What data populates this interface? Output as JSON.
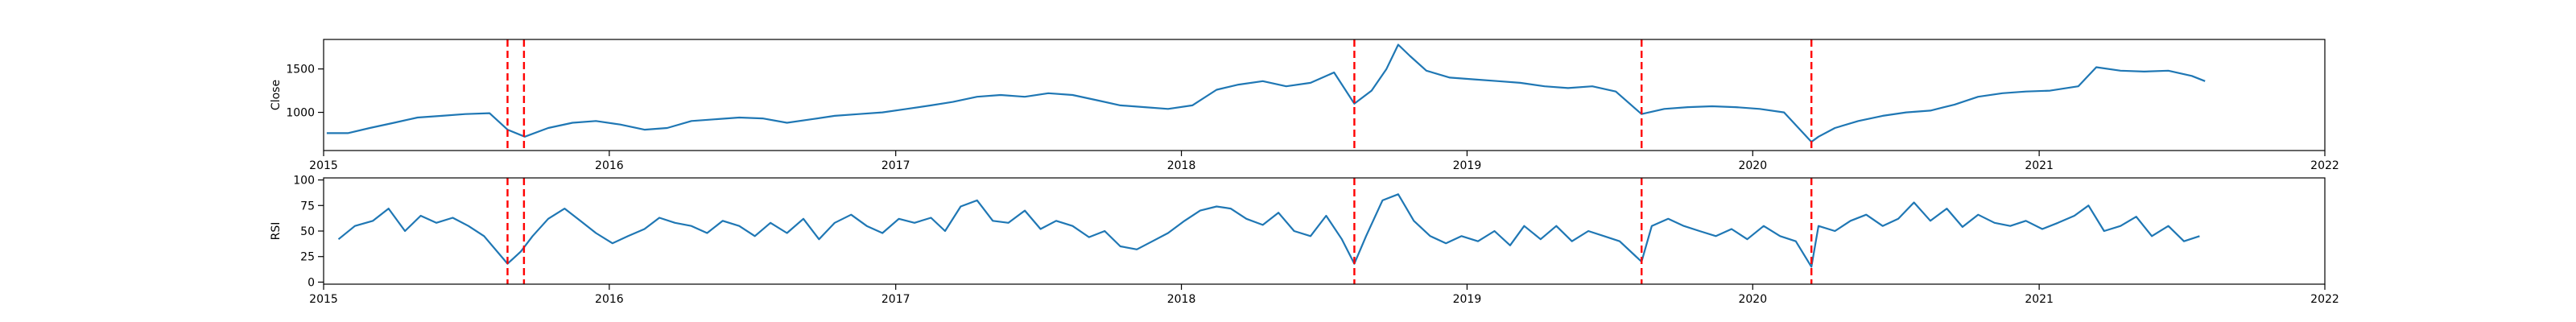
{
  "chart_data": [
    {
      "type": "line",
      "title": "",
      "xlabel": "",
      "ylabel": "Close",
      "xlim": [
        "2015-01-01",
        "2022-01-01"
      ],
      "ylim": [
        560,
        1840
      ],
      "x_ticks": [
        "2015",
        "2016",
        "2017",
        "2018",
        "2019",
        "2020",
        "2021",
        "2022"
      ],
      "y_ticks": [
        1000,
        1500
      ],
      "grid": false,
      "legend": "none",
      "series_color": "#1f77b4",
      "vline_color": "#ff0000",
      "vlines": [
        "2015-08-24",
        "2015-09-14",
        "2018-08-10",
        "2019-08-12",
        "2020-03-16"
      ],
      "series": [
        {
          "x": [
            "2015-01-05",
            "2015-02-01",
            "2015-03-01",
            "2015-04-01",
            "2015-05-01",
            "2015-06-01",
            "2015-07-01",
            "2015-08-01",
            "2015-08-24",
            "2015-09-15",
            "2015-10-15",
            "2015-11-15",
            "2015-12-15",
            "2016-01-15",
            "2016-02-15",
            "2016-03-15",
            "2016-04-15",
            "2016-05-15",
            "2016-06-15",
            "2016-07-15",
            "2016-08-15",
            "2016-09-15",
            "2016-10-15",
            "2016-11-15",
            "2016-12-15",
            "2017-01-15",
            "2017-02-15",
            "2017-03-15",
            "2017-04-15",
            "2017-05-15",
            "2017-06-15",
            "2017-07-15",
            "2017-08-15",
            "2017-09-15",
            "2017-10-15",
            "2017-11-15",
            "2017-12-15",
            "2018-01-15",
            "2018-02-15",
            "2018-03-15",
            "2018-04-15",
            "2018-05-15",
            "2018-06-15",
            "2018-07-15",
            "2018-08-10",
            "2018-09-01",
            "2018-09-20",
            "2018-10-05",
            "2018-10-20",
            "2018-11-10",
            "2018-12-10",
            "2019-01-10",
            "2019-02-10",
            "2019-03-10",
            "2019-04-10",
            "2019-05-10",
            "2019-06-10",
            "2019-07-10",
            "2019-08-12",
            "2019-09-10",
            "2019-10-10",
            "2019-11-10",
            "2019-12-10",
            "2020-01-10",
            "2020-02-10",
            "2020-03-16",
            "2020-03-25",
            "2020-04-15",
            "2020-05-15",
            "2020-06-15",
            "2020-07-15",
            "2020-08-15",
            "2020-09-15",
            "2020-10-15",
            "2020-11-15",
            "2020-12-15",
            "2021-01-15",
            "2021-02-20",
            "2021-03-15",
            "2021-04-15",
            "2021-05-15",
            "2021-06-15",
            "2021-07-15",
            "2021-08-01"
          ],
          "y": [
            760,
            760,
            820,
            880,
            940,
            960,
            980,
            990,
            800,
            720,
            820,
            880,
            900,
            860,
            800,
            820,
            900,
            920,
            940,
            930,
            880,
            920,
            960,
            980,
            1000,
            1040,
            1080,
            1120,
            1180,
            1200,
            1180,
            1220,
            1200,
            1140,
            1080,
            1060,
            1040,
            1080,
            1260,
            1320,
            1360,
            1300,
            1340,
            1460,
            1100,
            1250,
            1500,
            1780,
            1650,
            1480,
            1400,
            1380,
            1360,
            1340,
            1300,
            1280,
            1300,
            1240,
            980,
            1040,
            1060,
            1070,
            1060,
            1040,
            1000,
            660,
            720,
            820,
            900,
            960,
            1000,
            1020,
            1090,
            1180,
            1220,
            1240,
            1250,
            1300,
            1520,
            1480,
            1470,
            1480,
            1420,
            1360
          ]
        }
      ]
    },
    {
      "type": "line",
      "title": "",
      "xlabel": "",
      "ylabel": "RSI",
      "xlim": [
        "2015-01-01",
        "2022-01-01"
      ],
      "ylim": [
        -2,
        102
      ],
      "x_ticks": [
        "2015",
        "2016",
        "2017",
        "2018",
        "2019",
        "2020",
        "2021",
        "2022"
      ],
      "y_ticks": [
        0,
        25,
        50,
        75,
        100
      ],
      "grid": false,
      "legend": "none",
      "series_color": "#1f77b4",
      "vline_color": "#ff0000",
      "vlines": [
        "2015-08-24",
        "2015-09-14",
        "2018-08-10",
        "2019-08-12",
        "2020-03-16"
      ],
      "series": [
        {
          "x": [
            "2015-01-20",
            "2015-02-10",
            "2015-03-05",
            "2015-03-25",
            "2015-04-15",
            "2015-05-05",
            "2015-05-25",
            "2015-06-15",
            "2015-07-05",
            "2015-07-25",
            "2015-08-24",
            "2015-09-10",
            "2015-09-25",
            "2015-10-15",
            "2015-11-05",
            "2015-11-25",
            "2015-12-15",
            "2016-01-05",
            "2016-01-25",
            "2016-02-15",
            "2016-03-05",
            "2016-03-25",
            "2016-04-15",
            "2016-05-05",
            "2016-05-25",
            "2016-06-15",
            "2016-07-05",
            "2016-07-25",
            "2016-08-15",
            "2016-09-05",
            "2016-09-25",
            "2016-10-15",
            "2016-11-05",
            "2016-11-25",
            "2016-12-15",
            "2017-01-05",
            "2017-01-25",
            "2017-02-15",
            "2017-03-05",
            "2017-03-25",
            "2017-04-15",
            "2017-05-05",
            "2017-05-25",
            "2017-06-15",
            "2017-07-05",
            "2017-07-25",
            "2017-08-15",
            "2017-09-05",
            "2017-09-25",
            "2017-10-15",
            "2017-11-05",
            "2017-11-25",
            "2017-12-15",
            "2018-01-05",
            "2018-01-25",
            "2018-02-15",
            "2018-03-05",
            "2018-03-25",
            "2018-04-15",
            "2018-05-05",
            "2018-05-25",
            "2018-06-15",
            "2018-07-05",
            "2018-07-25",
            "2018-08-10",
            "2018-08-25",
            "2018-09-15",
            "2018-10-05",
            "2018-10-25",
            "2018-11-15",
            "2018-12-05",
            "2018-12-25",
            "2019-01-15",
            "2019-02-05",
            "2019-02-25",
            "2019-03-15",
            "2019-04-05",
            "2019-04-25",
            "2019-05-15",
            "2019-06-05",
            "2019-06-25",
            "2019-07-15",
            "2019-08-12",
            "2019-08-25",
            "2019-09-15",
            "2019-10-05",
            "2019-10-25",
            "2019-11-15",
            "2019-12-05",
            "2019-12-25",
            "2020-01-15",
            "2020-02-05",
            "2020-02-25",
            "2020-03-16",
            "2020-03-25",
            "2020-04-15",
            "2020-05-05",
            "2020-05-25",
            "2020-06-15",
            "2020-07-05",
            "2020-07-25",
            "2020-08-15",
            "2020-09-05",
            "2020-09-25",
            "2020-10-15",
            "2020-11-05",
            "2020-11-25",
            "2020-12-15",
            "2021-01-05",
            "2021-01-25",
            "2021-02-15",
            "2021-03-05",
            "2021-03-25",
            "2021-04-15",
            "2021-05-05",
            "2021-05-25",
            "2021-06-15",
            "2021-07-05",
            "2021-07-25"
          ],
          "y": [
            42,
            55,
            60,
            72,
            50,
            65,
            58,
            63,
            55,
            45,
            18,
            30,
            45,
            62,
            72,
            60,
            48,
            38,
            45,
            52,
            63,
            58,
            55,
            48,
            60,
            55,
            45,
            58,
            48,
            62,
            42,
            58,
            66,
            55,
            48,
            62,
            58,
            63,
            50,
            74,
            80,
            60,
            58,
            70,
            52,
            60,
            55,
            44,
            50,
            35,
            32,
            40,
            48,
            60,
            70,
            74,
            72,
            62,
            56,
            68,
            50,
            45,
            65,
            42,
            18,
            45,
            80,
            86,
            60,
            45,
            38,
            45,
            40,
            50,
            36,
            55,
            42,
            55,
            40,
            50,
            45,
            40,
            20,
            55,
            62,
            55,
            50,
            45,
            52,
            42,
            55,
            45,
            40,
            15,
            55,
            50,
            60,
            66,
            55,
            62,
            78,
            60,
            72,
            54,
            66,
            58,
            55,
            60,
            52,
            58,
            65,
            75,
            50,
            55,
            64,
            45,
            55,
            40,
            45
          ]
        }
      ]
    }
  ]
}
